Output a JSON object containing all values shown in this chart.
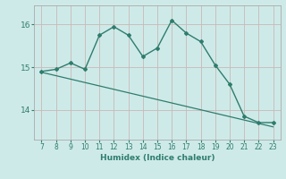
{
  "x": [
    7,
    8,
    9,
    10,
    11,
    12,
    13,
    14,
    15,
    16,
    17,
    18,
    19,
    20,
    21,
    22,
    23
  ],
  "y_main": [
    14.9,
    14.95,
    15.1,
    14.95,
    15.75,
    15.95,
    15.75,
    15.25,
    15.45,
    16.1,
    15.8,
    15.6,
    15.05,
    14.6,
    13.85,
    13.7,
    13.7
  ],
  "y_trend": [
    14.88,
    14.8,
    14.72,
    14.64,
    14.56,
    14.48,
    14.4,
    14.32,
    14.24,
    14.16,
    14.08,
    14.0,
    13.92,
    13.84,
    13.76,
    13.68,
    13.6
  ],
  "line_color": "#2e7d6e",
  "bg_color": "#ceeae8",
  "grid_color": "#b8d4d0",
  "grid_color_h": "#e8b0b0",
  "xlabel": "Humidex (Indice chaleur)",
  "ylim": [
    13.3,
    16.45
  ],
  "xlim": [
    6.5,
    23.5
  ],
  "yticks": [
    14,
    15,
    16
  ],
  "xticks": [
    7,
    8,
    9,
    10,
    11,
    12,
    13,
    14,
    15,
    16,
    17,
    18,
    19,
    20,
    21,
    22,
    23
  ]
}
